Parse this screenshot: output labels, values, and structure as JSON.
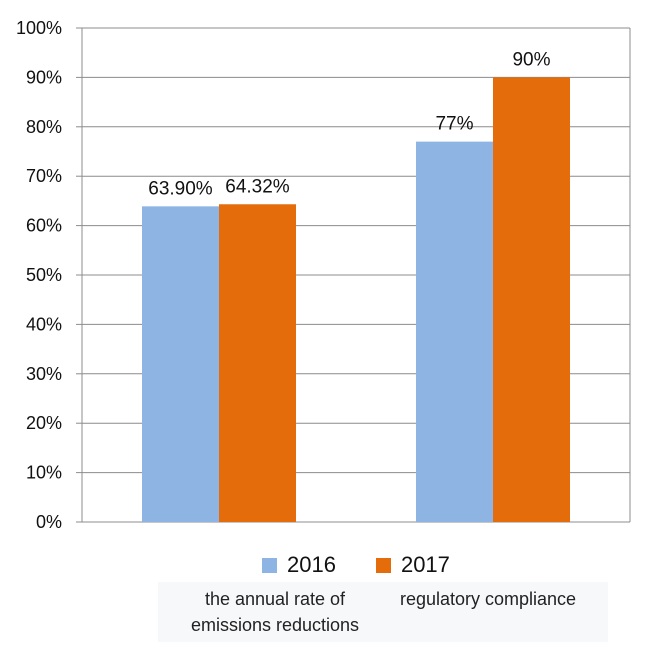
{
  "chart_data": {
    "type": "bar",
    "title": "",
    "xlabel": "",
    "ylabel": "",
    "ylim": [
      0,
      100
    ],
    "yticks": [
      "0%",
      "10%",
      "20%",
      "30%",
      "40%",
      "50%",
      "60%",
      "70%",
      "80%",
      "90%",
      "100%"
    ],
    "grid": true,
    "legend_position": "bottom",
    "categories": [
      "the annual rate of emissions reductions",
      "regulatory compliance"
    ],
    "category_lines": [
      [
        "the annual rate of",
        "emissions reductions"
      ],
      [
        "regulatory compliance"
      ]
    ],
    "series": [
      {
        "name": "2016",
        "color": "#8DB4E2",
        "values": [
          63.9,
          77
        ],
        "labels": [
          "63.90%",
          "77%"
        ]
      },
      {
        "name": "2017",
        "color": "#E46C0A",
        "values": [
          64.32,
          90
        ],
        "labels": [
          "64.32%",
          "90%"
        ]
      }
    ]
  }
}
